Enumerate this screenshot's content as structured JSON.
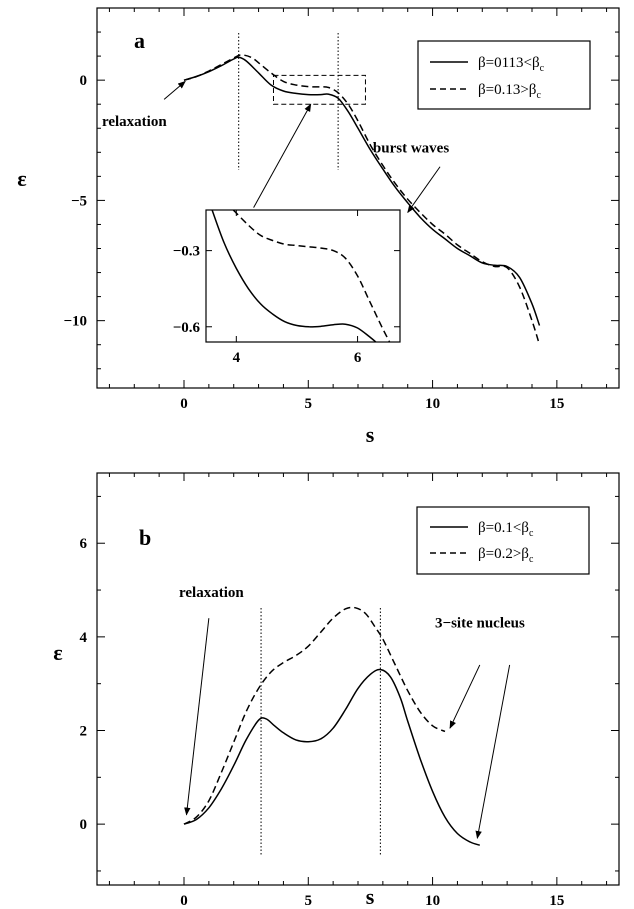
{
  "figure": {
    "panels": [
      {
        "id": "a",
        "panel_label": "a",
        "xlabel": "s",
        "ylabel": "ε",
        "xlim": [
          -3.5,
          17.5
        ],
        "ylim": [
          -12.8,
          3.0
        ],
        "xticks": [
          0,
          5,
          10,
          15
        ],
        "yticks": [
          0,
          -5,
          -10
        ],
        "ytick_labels": [
          "0",
          "−5",
          "−10"
        ],
        "vlines": [
          2.2,
          6.2
        ],
        "legend": [
          {
            "label": "β=0113<β",
            "sub": "c",
            "dash": false
          },
          {
            "label": "β=0.13>β",
            "sub": "c",
            "dash": true
          }
        ],
        "annotations": [
          {
            "text": "relaxation",
            "pos": [
              -3.3,
              -1.9
            ],
            "arrow_from": [
              -0.8,
              -0.8
            ],
            "arrow_to": [
              0.05,
              -0.05
            ]
          },
          {
            "text": "burst waves",
            "pos": [
              7.6,
              -3.0
            ],
            "arrow_from": [
              10.3,
              -3.6
            ],
            "arrow_to": [
              9.0,
              -5.5
            ]
          }
        ],
        "inset": {
          "xlim": [
            3.5,
            6.7
          ],
          "ylim": [
            -0.66,
            -0.14
          ],
          "xticks": [
            4,
            6
          ],
          "yticks": [
            -0.3,
            -0.6
          ],
          "ytick_labels": [
            "−0.3",
            "−0.6"
          ],
          "zoom_box": {
            "x": [
              3.6,
              7.3
            ],
            "y": [
              -1.0,
              0.2
            ]
          },
          "arrow_from": [
            2.8,
            -5.3
          ],
          "arrow_to": [
            5.1,
            -1.0
          ]
        }
      },
      {
        "id": "b",
        "panel_label": "b",
        "xlabel": "s",
        "ylabel": "ε",
        "xlim": [
          -3.5,
          17.5
        ],
        "ylim": [
          -1.3,
          7.5
        ],
        "xticks": [
          0,
          5,
          10,
          15
        ],
        "yticks": [
          0,
          2,
          4,
          6
        ],
        "ytick_labels": [
          "0",
          "2",
          "4",
          "6"
        ],
        "vlines": [
          3.1,
          7.9
        ],
        "legend": [
          {
            "label": "β=0.1<β",
            "sub": "c",
            "dash": false
          },
          {
            "label": "β=0.2>β",
            "sub": "c",
            "dash": true
          }
        ],
        "annotations": [
          {
            "text": "relaxation",
            "pos": [
              -0.2,
              4.85
            ],
            "arrow_from": [
              1.0,
              4.4
            ],
            "arrow_to": [
              0.1,
              0.2
            ]
          },
          {
            "text": "3−site nucleus",
            "pos": [
              10.1,
              4.2
            ],
            "arrow_from": [
              11.9,
              3.4
            ],
            "arrow_to": [
              10.7,
              2.05
            ],
            "arrow2_from": [
              13.1,
              3.4
            ],
            "arrow2_to": [
              11.8,
              -0.3
            ]
          }
        ]
      }
    ]
  },
  "chart_data": [
    {
      "type": "line",
      "panel": "a",
      "title": "",
      "xlabel": "s",
      "ylabel": "ε",
      "xlim": [
        -3.5,
        17.5
      ],
      "ylim": [
        -12.8,
        3.0
      ],
      "grid": false,
      "legend_position": "top-right",
      "series": [
        {
          "name": "β=0113<βc",
          "style": "solid",
          "x": [
            0,
            0.5,
            1.0,
            1.5,
            2.0,
            2.2,
            2.5,
            3.0,
            3.5,
            4.0,
            4.5,
            5.0,
            5.5,
            5.8,
            6.2,
            6.6,
            7.0,
            7.5,
            8.0,
            8.5,
            9.0,
            9.5,
            10.0,
            10.5,
            11.0,
            11.5,
            12.0,
            12.5,
            13.0,
            13.5,
            14.0,
            14.3
          ],
          "y": [
            0,
            0.15,
            0.35,
            0.6,
            0.88,
            0.95,
            0.8,
            0.3,
            -0.2,
            -0.45,
            -0.55,
            -0.6,
            -0.6,
            -0.58,
            -0.75,
            -1.3,
            -2.0,
            -2.9,
            -3.7,
            -4.45,
            -5.1,
            -5.7,
            -6.2,
            -6.6,
            -7.0,
            -7.3,
            -7.6,
            -7.7,
            -7.75,
            -8.2,
            -9.3,
            -10.2
          ]
        },
        {
          "name": "β=0.13>βc",
          "style": "dashed",
          "x": [
            0,
            0.5,
            1.0,
            1.5,
            2.0,
            2.3,
            2.7,
            3.0,
            3.5,
            4.0,
            4.5,
            5.0,
            5.5,
            5.8,
            6.2,
            6.6,
            7.0,
            7.5,
            8.0,
            8.5,
            9.0,
            9.5,
            10.0,
            10.5,
            11.0,
            11.5,
            12.0,
            12.5,
            13.0,
            13.5,
            14.0,
            14.3
          ],
          "y": [
            0,
            0.15,
            0.38,
            0.65,
            0.92,
            1.05,
            0.95,
            0.72,
            0.3,
            -0.05,
            -0.2,
            -0.27,
            -0.28,
            -0.3,
            -0.52,
            -1.0,
            -1.7,
            -2.7,
            -3.55,
            -4.3,
            -4.95,
            -5.5,
            -6.0,
            -6.4,
            -6.85,
            -7.2,
            -7.55,
            -7.75,
            -7.8,
            -8.6,
            -10.0,
            -11.0
          ]
        }
      ],
      "vlines": [
        2.2,
        6.2
      ]
    },
    {
      "type": "line",
      "panel": "a-inset",
      "title": "",
      "xlabel": "",
      "ylabel": "",
      "xlim": [
        3.5,
        6.7
      ],
      "ylim": [
        -0.66,
        -0.14
      ],
      "grid": false,
      "series": [
        {
          "name": "β=0113<βc",
          "style": "solid",
          "x": [
            3.6,
            3.8,
            4.0,
            4.2,
            4.4,
            4.6,
            4.8,
            5.0,
            5.2,
            5.4,
            5.6,
            5.8,
            6.0,
            6.2,
            6.35
          ],
          "y": [
            -0.14,
            -0.27,
            -0.37,
            -0.45,
            -0.51,
            -0.55,
            -0.58,
            -0.595,
            -0.6,
            -0.598,
            -0.592,
            -0.59,
            -0.605,
            -0.64,
            -0.67
          ]
        },
        {
          "name": "β=0.13>βc",
          "style": "dashed",
          "x": [
            3.95,
            4.2,
            4.4,
            4.6,
            4.8,
            5.0,
            5.2,
            5.4,
            5.6,
            5.8,
            6.0,
            6.2,
            6.4,
            6.55
          ],
          "y": [
            -0.14,
            -0.2,
            -0.24,
            -0.26,
            -0.275,
            -0.28,
            -0.285,
            -0.29,
            -0.3,
            -0.33,
            -0.4,
            -0.5,
            -0.6,
            -0.67
          ]
        }
      ]
    },
    {
      "type": "line",
      "panel": "b",
      "title": "",
      "xlabel": "s",
      "ylabel": "ε",
      "xlim": [
        -3.5,
        17.5
      ],
      "ylim": [
        -1.3,
        7.5
      ],
      "grid": false,
      "legend_position": "top-right",
      "series": [
        {
          "name": "β=0.1<βc",
          "style": "solid",
          "x": [
            0,
            0.5,
            1.0,
            1.5,
            2.0,
            2.5,
            3.0,
            3.3,
            3.6,
            4.0,
            4.5,
            5.0,
            5.5,
            6.0,
            6.5,
            7.0,
            7.5,
            7.9,
            8.3,
            8.7,
            9.0,
            9.5,
            10.0,
            10.5,
            11.0,
            11.5,
            11.9
          ],
          "y": [
            0,
            0.1,
            0.35,
            0.75,
            1.25,
            1.8,
            2.22,
            2.25,
            2.12,
            1.95,
            1.8,
            1.76,
            1.82,
            2.05,
            2.45,
            2.9,
            3.2,
            3.3,
            3.15,
            2.7,
            2.2,
            1.4,
            0.7,
            0.15,
            -0.2,
            -0.38,
            -0.45
          ]
        },
        {
          "name": "β=0.2>βc",
          "style": "dashed",
          "x": [
            0,
            0.5,
            1.0,
            1.5,
            2.0,
            2.5,
            3.0,
            3.5,
            4.0,
            4.5,
            5.0,
            5.5,
            6.0,
            6.5,
            6.9,
            7.3,
            7.7,
            8.0,
            8.5,
            9.0,
            9.5,
            10.0,
            10.5
          ],
          "y": [
            0,
            0.15,
            0.5,
            1.1,
            1.75,
            2.4,
            2.9,
            3.25,
            3.45,
            3.6,
            3.8,
            4.1,
            4.4,
            4.6,
            4.62,
            4.5,
            4.2,
            3.95,
            3.4,
            2.85,
            2.4,
            2.1,
            1.98
          ]
        }
      ],
      "vlines": [
        3.1,
        7.9
      ]
    }
  ]
}
